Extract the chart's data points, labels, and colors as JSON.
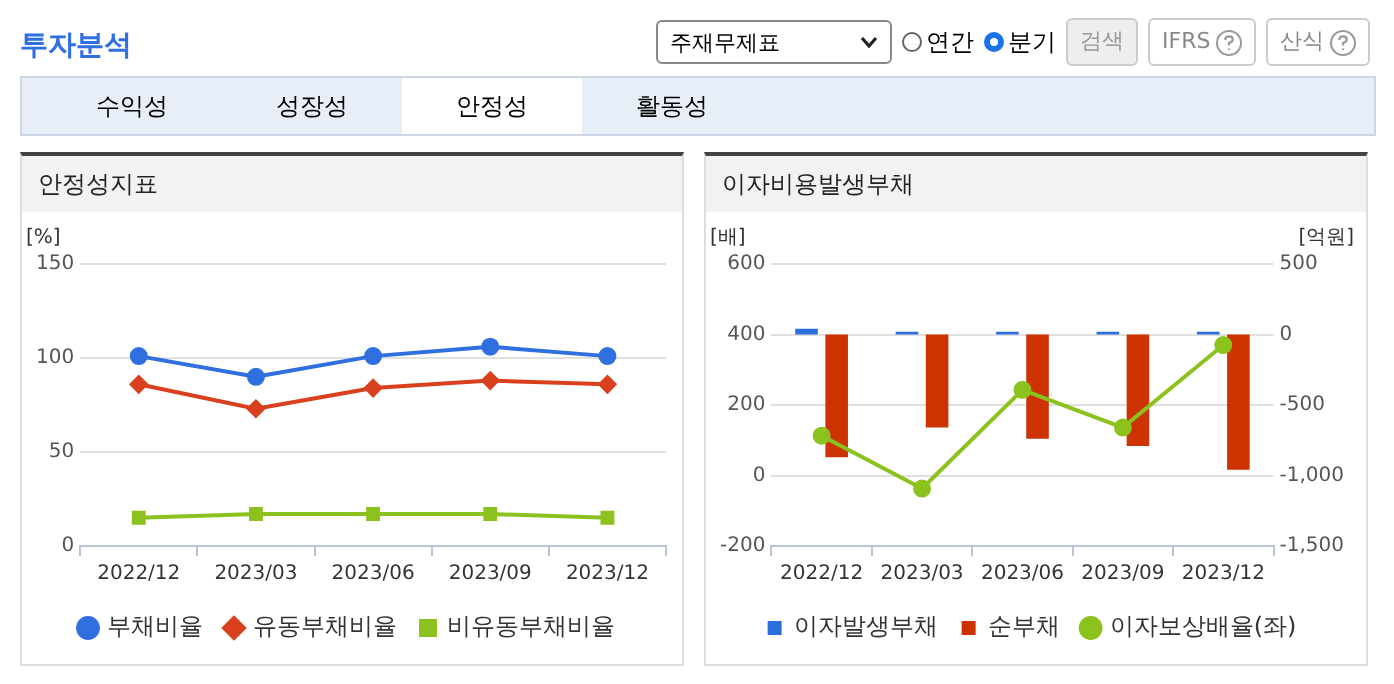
{
  "chart_data": [
    {
      "type": "other",
      "title": "투자분석",
      "annotations": [
        "주재무제표",
        "연간",
        "분기",
        "검색",
        "IFRS",
        "산식",
        "수익성",
        "성장성",
        "안정성",
        "활동성"
      ]
    },
    {
      "type": "line",
      "title": "안정성지표",
      "ylabel": "[%]",
      "categories": [
        "2022/12",
        "2023/03",
        "2023/06",
        "2023/09",
        "2023/12"
      ],
      "series": [
        {
          "name": "부채비율",
          "color": "#2f6fe0",
          "values": [
            101,
            90,
            101,
            106,
            101
          ],
          "marker": "circle"
        },
        {
          "name": "유동부채비율",
          "color": "#d9411e",
          "values": [
            86,
            73,
            84,
            88,
            86
          ],
          "marker": "diamond"
        },
        {
          "name": "비유동부채비율",
          "color": "#8cc21e",
          "values": [
            15,
            17,
            17,
            17,
            15
          ],
          "marker": "square"
        }
      ],
      "ylim": [
        0,
        150
      ],
      "yticks": [
        0,
        50,
        100,
        150
      ],
      "grid": "y",
      "legend": "bottom"
    },
    {
      "type": "bar",
      "title": "이자비용발생부채",
      "ylabel": "[배]",
      "y2label": "[억원]",
      "categories": [
        "2022/12",
        "2023/03",
        "2023/06",
        "2023/09",
        "2023/12"
      ],
      "series": [
        {
          "name": "이자발생부채",
          "color": "#2a6fdb",
          "values": [
            40,
            20,
            20,
            20,
            20
          ],
          "axis": "y2"
        },
        {
          "name": "순부채",
          "color": "#cc3300",
          "values": [
            -870,
            -660,
            -740,
            -790,
            -960
          ],
          "axis": "y2"
        },
        {
          "name": "이자보상배율(좌)",
          "type": "line",
          "color": "#8cc21e",
          "values": [
            113,
            -37,
            243,
            136,
            370
          ],
          "marker": "circle"
        }
      ],
      "ylim": [
        -200,
        600
      ],
      "yticks": [
        -200,
        0,
        200,
        400,
        600
      ],
      "y2lim": [
        -1500,
        500
      ],
      "y2ticks": [
        {
          "value": -1500,
          "label": "-1,500"
        },
        {
          "value": -1000,
          "label": "-1,000"
        },
        -500,
        0,
        500
      ],
      "grid": "y",
      "legend": "bottom"
    }
  ]
}
